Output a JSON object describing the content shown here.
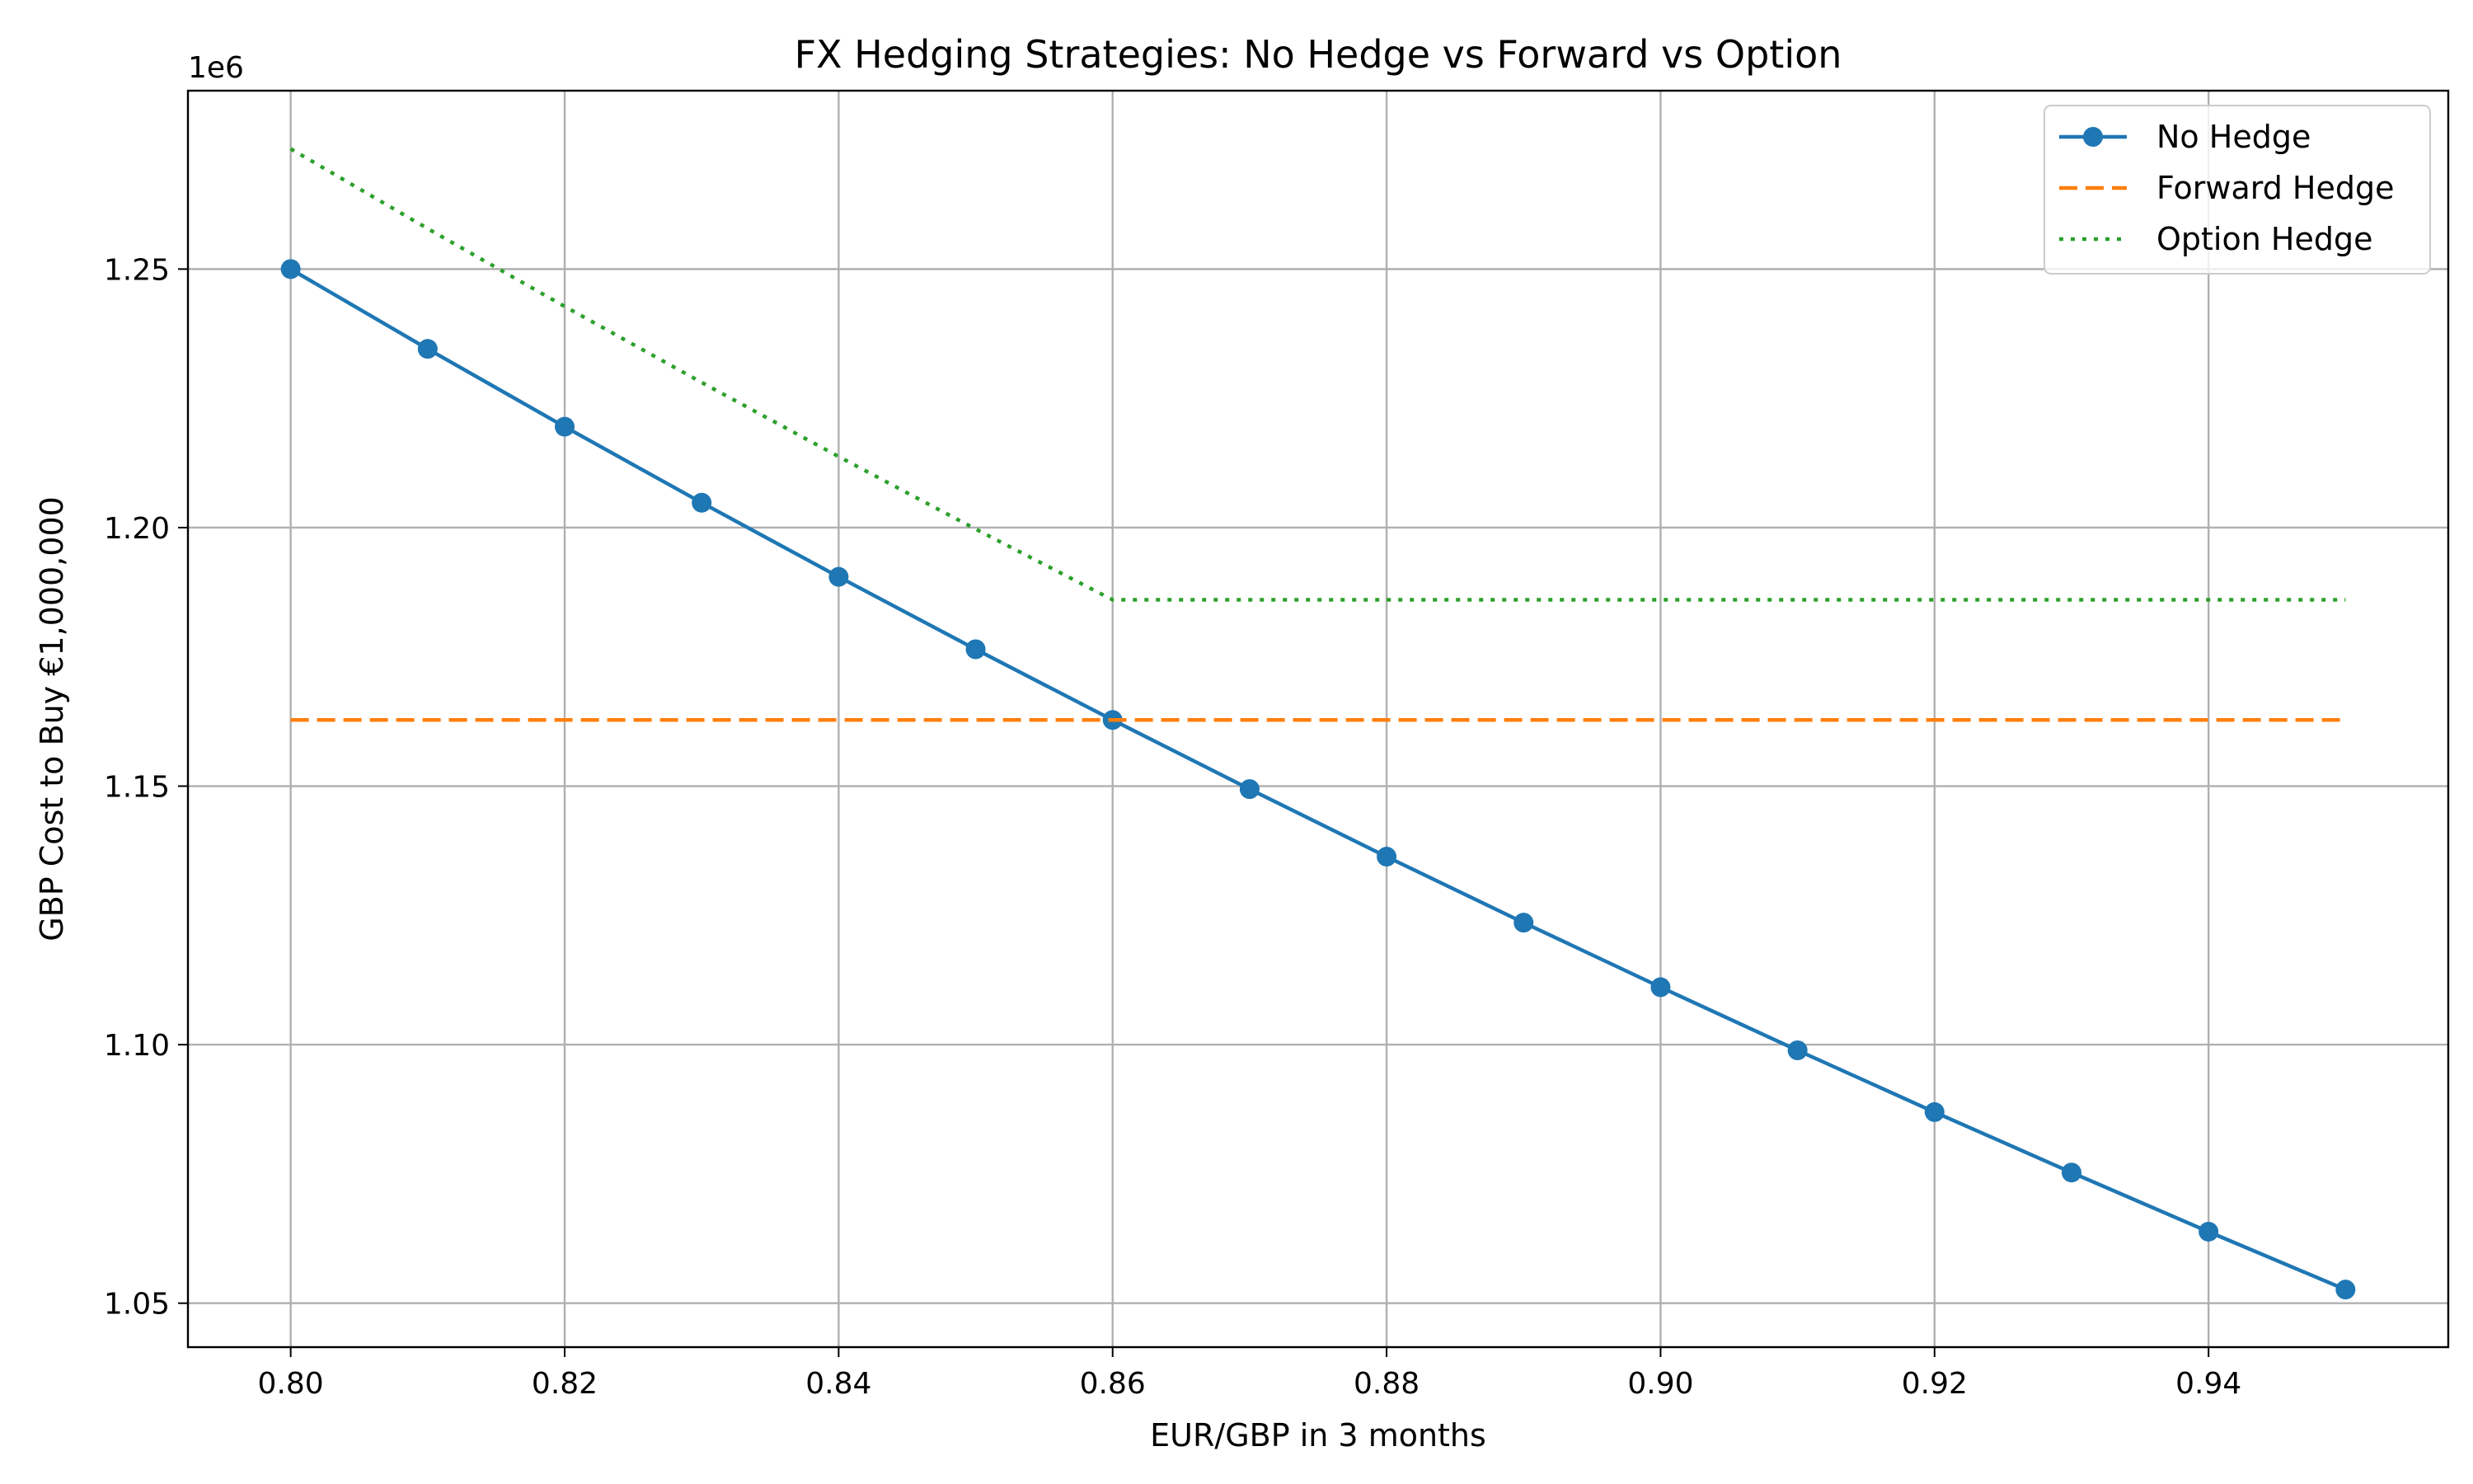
{
  "chart_data": {
    "type": "line",
    "title": "FX Hedging Strategies: No Hedge vs Forward vs Option",
    "xlabel": "EUR/GBP in 3 months",
    "ylabel": "GBP Cost to Buy €1,000,000",
    "y_offset_label": "1e6",
    "x": [
      0.8,
      0.81,
      0.82,
      0.83,
      0.84,
      0.85,
      0.86,
      0.87,
      0.88,
      0.89,
      0.9,
      0.91,
      0.92,
      0.93,
      0.94,
      0.95
    ],
    "xlim": [
      0.7925,
      0.9575
    ],
    "ylim": [
      1.0415,
      1.2845
    ],
    "y_scale_factor": 1000000,
    "xticks": [
      0.8,
      0.82,
      0.84,
      0.86,
      0.88,
      0.9,
      0.92,
      0.94
    ],
    "xtick_labels": [
      "0.80",
      "0.82",
      "0.84",
      "0.86",
      "0.88",
      "0.90",
      "0.92",
      "0.94"
    ],
    "yticks": [
      1.05,
      1.1,
      1.15,
      1.2,
      1.25
    ],
    "ytick_labels": [
      "1.05",
      "1.10",
      "1.15",
      "1.20",
      "1.25"
    ],
    "grid": true,
    "legend_position": "top-right",
    "series": [
      {
        "name": "No Hedge",
        "color": "#1f77b4",
        "style": "solid",
        "marker": "circle",
        "values": [
          1250000,
          1234568,
          1219512,
          1204819,
          1190476,
          1176471,
          1162791,
          1149425,
          1136364,
          1123596,
          1111111,
          1098901,
          1086957,
          1075269,
          1063830,
          1052632
        ]
      },
      {
        "name": "Forward Hedge",
        "color": "#ff7f0e",
        "style": "dashed",
        "marker": "none",
        "values": [
          1162791,
          1162791,
          1162791,
          1162791,
          1162791,
          1162791,
          1162791,
          1162791,
          1162791,
          1162791,
          1162791,
          1162791,
          1162791,
          1162791,
          1162791,
          1162791
        ]
      },
      {
        "name": "Option Hedge",
        "color": "#2ca02c",
        "style": "dotted",
        "marker": "none",
        "values": [
          1273256,
          1257824,
          1242768,
          1228075,
          1213733,
          1199727,
          1186047,
          1186047,
          1186047,
          1186047,
          1186047,
          1186047,
          1186047,
          1186047,
          1186047,
          1186047
        ]
      }
    ]
  }
}
